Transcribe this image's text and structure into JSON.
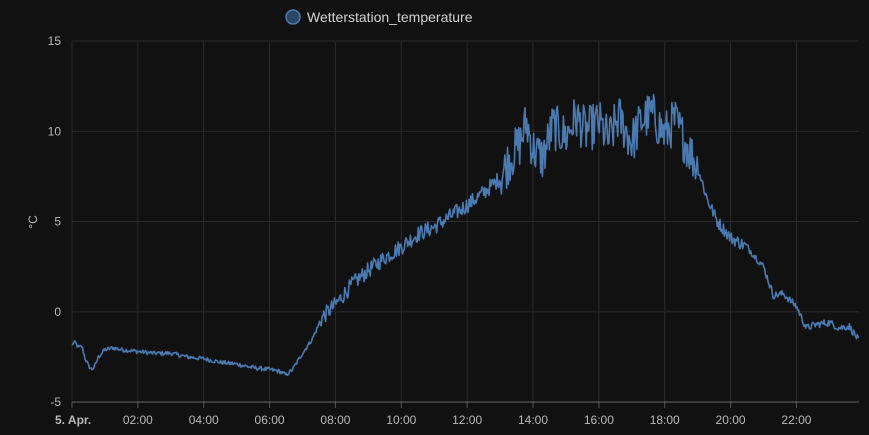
{
  "chart_data": {
    "type": "line",
    "title": "",
    "xlabel": "",
    "ylabel": "°C",
    "ylim": [
      -5,
      15
    ],
    "yticks": [
      15,
      10,
      5,
      0,
      -5
    ],
    "xlim_hours": [
      0,
      23.9
    ],
    "xticks": [
      {
        "hour": 0,
        "label": "5. Apr.",
        "bold": true
      },
      {
        "hour": 2,
        "label": "02:00",
        "bold": false
      },
      {
        "hour": 4,
        "label": "04:00",
        "bold": false
      },
      {
        "hour": 6,
        "label": "06:00",
        "bold": false
      },
      {
        "hour": 8,
        "label": "08:00",
        "bold": false
      },
      {
        "hour": 10,
        "label": "10:00",
        "bold": false
      },
      {
        "hour": 12,
        "label": "12:00",
        "bold": false
      },
      {
        "hour": 14,
        "label": "14:00",
        "bold": false
      },
      {
        "hour": 16,
        "label": "16:00",
        "bold": false
      },
      {
        "hour": 18,
        "label": "18:00",
        "bold": false
      },
      {
        "hour": 20,
        "label": "20:00",
        "bold": false
      },
      {
        "hour": 22,
        "label": "22:00",
        "bold": false
      }
    ],
    "grid": true,
    "legend": "top-center",
    "series": [
      {
        "name": "Wetterstation_temperature",
        "color": "#4a7ab0",
        "x": [
          0,
          0.1,
          0.2,
          0.3,
          0.4,
          0.5,
          0.6,
          0.7,
          0.8,
          1.0,
          1.25,
          1.5,
          2.0,
          2.5,
          3.0,
          3.5,
          4.0,
          4.5,
          5.0,
          5.5,
          6.0,
          6.3,
          6.5,
          6.7,
          7.0,
          7.3,
          7.6,
          8.0,
          8.5,
          9.0,
          9.5,
          10.0,
          10.5,
          11.0,
          11.5,
          12.0,
          12.5,
          13.0,
          13.3,
          13.6,
          13.8,
          14.0,
          14.3,
          14.6,
          15.0,
          15.3,
          15.6,
          16.0,
          16.3,
          16.6,
          17.0,
          17.3,
          17.6,
          18.0,
          18.3,
          18.6,
          19.0,
          19.3,
          19.6,
          20.0,
          20.5,
          21.0,
          21.3,
          21.6,
          22.0,
          22.3,
          22.6,
          23.0,
          23.3,
          23.6,
          23.9
        ],
        "values": [
          -1.8,
          -1.7,
          -2.0,
          -1.9,
          -2.6,
          -3.0,
          -3.2,
          -3.0,
          -2.5,
          -2.1,
          -2.0,
          -2.1,
          -2.2,
          -2.3,
          -2.3,
          -2.5,
          -2.6,
          -2.8,
          -2.9,
          -3.1,
          -3.2,
          -3.3,
          -3.5,
          -3.2,
          -2.3,
          -1.5,
          -0.3,
          0.4,
          1.5,
          2.3,
          3.0,
          3.6,
          4.3,
          4.7,
          5.3,
          5.9,
          6.6,
          7.4,
          8.5,
          9.3,
          10.5,
          9.0,
          8.5,
          10.3,
          9.7,
          10.8,
          10.0,
          10.5,
          9.5,
          10.8,
          9.4,
          10.6,
          11.0,
          9.8,
          10.6,
          9.5,
          8.0,
          6.2,
          5.0,
          4.1,
          3.6,
          2.5,
          0.9,
          1.0,
          0.3,
          -0.9,
          -0.7,
          -0.6,
          -0.9,
          -0.8,
          -1.6
        ]
      }
    ]
  }
}
